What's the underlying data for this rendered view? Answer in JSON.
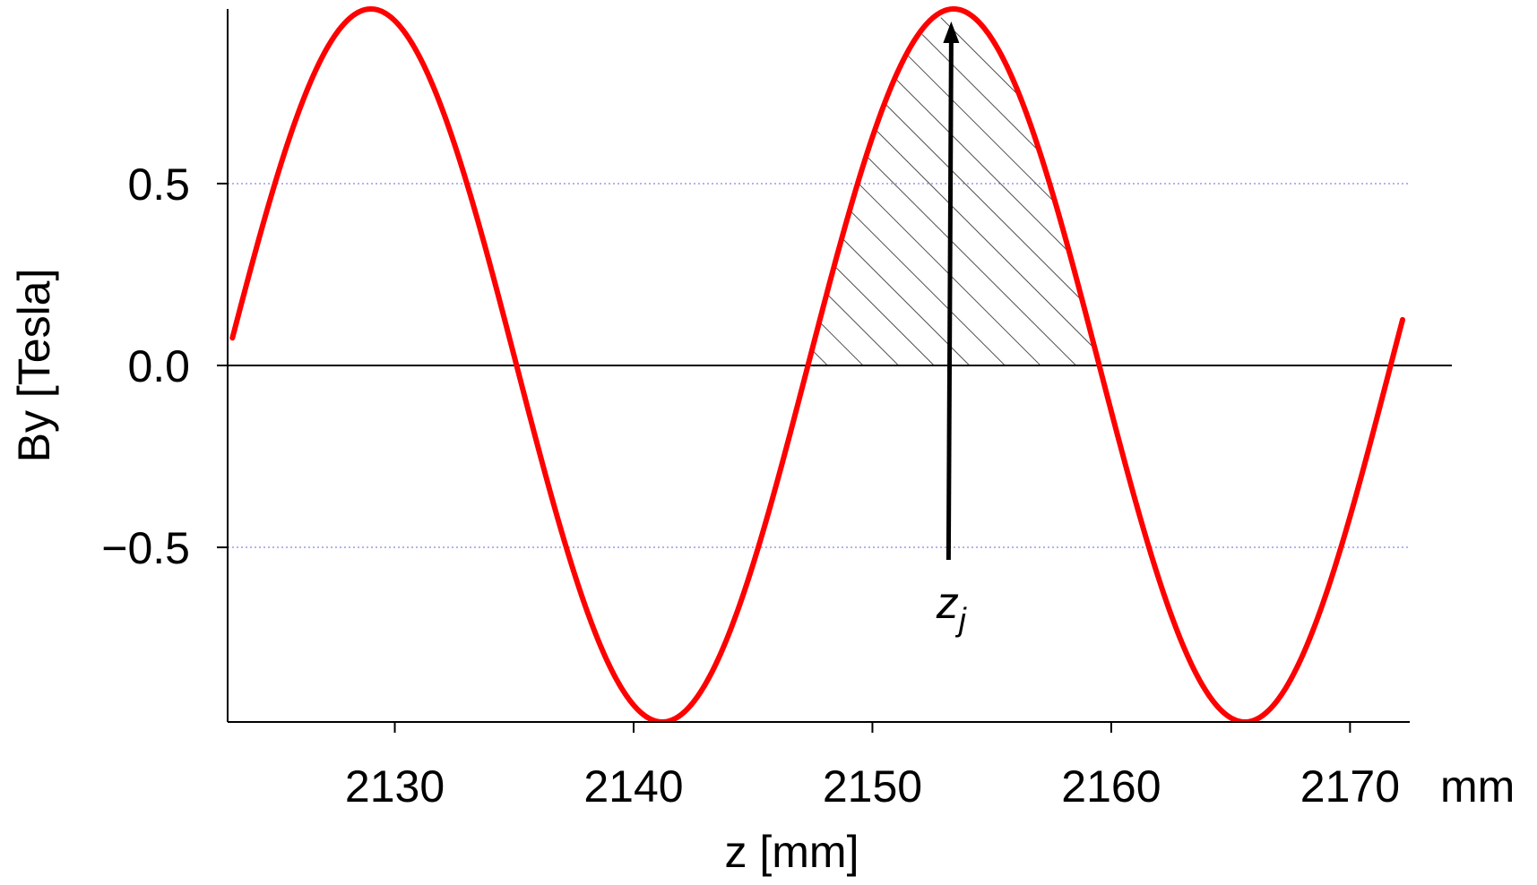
{
  "chart_data": {
    "type": "line",
    "title": "",
    "xlabel": "z [mm]",
    "ylabel": "By [Tesla]",
    "x_unit_label": "mm",
    "xlim": [
      2123,
      2172.5
    ],
    "ylim": [
      -0.98,
      0.98
    ],
    "x_ticks": [
      2130,
      2140,
      2150,
      2160,
      2170
    ],
    "x_tick_labels": [
      "2130",
      "2140",
      "2150",
      "2160",
      "2170"
    ],
    "y_ticks": [
      0.5,
      0.0,
      -0.5
    ],
    "y_tick_labels": [
      "0.5",
      "0.0",
      "−0.5"
    ],
    "grid": "horizontal dotted at ±0.5",
    "series": [
      {
        "color": "#ff0000",
        "function": "sine",
        "amplitude": 0.98,
        "period_mm": 24.4,
        "zero_crossing_rising_mm": 2147.3,
        "x_range": [
          2123.2,
          2172.2
        ]
      }
    ],
    "shaded_region": {
      "x_from": 2147.3,
      "x_to": 2159.5,
      "pattern": "diagonal hatch"
    },
    "annotation": {
      "base": "z",
      "subscript": "j",
      "x": 2153.3
    }
  }
}
